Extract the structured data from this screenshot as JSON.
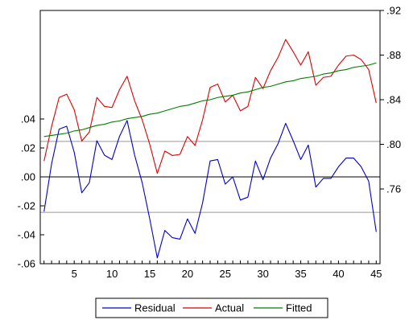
{
  "chart_data": {
    "type": "line",
    "title": "",
    "xlabel": "",
    "x": [
      1,
      2,
      3,
      4,
      5,
      6,
      7,
      8,
      9,
      10,
      11,
      12,
      13,
      14,
      15,
      16,
      17,
      18,
      19,
      20,
      21,
      22,
      23,
      24,
      25,
      26,
      27,
      28,
      29,
      30,
      31,
      32,
      33,
      34,
      35,
      36,
      37,
      38,
      39,
      40,
      41,
      42,
      43,
      44,
      45
    ],
    "x_ticks": [
      5,
      10,
      15,
      20,
      25,
      30,
      35,
      40,
      45
    ],
    "xlim": [
      0.5,
      45.5
    ],
    "left_axis": {
      "ylim": [
        -0.06,
        0.115
      ],
      "tick_values": [
        -0.06,
        -0.04,
        -0.02,
        0.0,
        0.02,
        0.04
      ],
      "tick_labels": [
        "-.06",
        "-.04",
        "-.02",
        ".00",
        ".02",
        ".04"
      ],
      "reference_lines": [
        {
          "value": 0.0,
          "style": "solid"
        },
        {
          "value": 0.0245,
          "style": "dotted"
        },
        {
          "value": -0.0245,
          "style": "dotted"
        }
      ]
    },
    "right_axis": {
      "ylim": [
        0.693,
        0.92
      ],
      "tick_values": [
        0.76,
        0.8,
        0.84,
        0.88,
        0.92
      ],
      "tick_labels": [
        ".76",
        ".80",
        ".84",
        ".88",
        ".92"
      ]
    },
    "series": [
      {
        "name": "Residual",
        "axis": "left",
        "color": "#0000cc",
        "values": [
          -0.024,
          0.009,
          0.033,
          0.035,
          0.017,
          -0.011,
          -0.004,
          0.025,
          0.015,
          0.012,
          0.028,
          0.039,
          0.015,
          -0.004,
          -0.029,
          -0.056,
          -0.037,
          -0.042,
          -0.043,
          -0.029,
          -0.039,
          -0.018,
          0.011,
          0.012,
          -0.005,
          0.0,
          -0.016,
          -0.014,
          0.011,
          -0.002,
          0.013,
          0.023,
          0.037,
          0.025,
          0.012,
          0.022,
          -0.007,
          -0.001,
          -0.001,
          0.007,
          0.013,
          0.013,
          0.007,
          -0.003,
          -0.038
        ]
      },
      {
        "name": "Actual",
        "axis": "right",
        "color": "#dd0000",
        "values": [
          0.785,
          0.816,
          0.842,
          0.845,
          0.831,
          0.803,
          0.811,
          0.842,
          0.834,
          0.833,
          0.849,
          0.861,
          0.839,
          0.822,
          0.8,
          0.774,
          0.794,
          0.79,
          0.791,
          0.807,
          0.799,
          0.822,
          0.851,
          0.854,
          0.838,
          0.844,
          0.83,
          0.834,
          0.86,
          0.85,
          0.866,
          0.878,
          0.894,
          0.883,
          0.871,
          0.883,
          0.853,
          0.86,
          0.861,
          0.871,
          0.879,
          0.88,
          0.876,
          0.867,
          0.837
        ]
      },
      {
        "name": "Fitted",
        "axis": "right",
        "color": "#007f00",
        "values": [
          0.807,
          0.808,
          0.809,
          0.81,
          0.812,
          0.813,
          0.815,
          0.817,
          0.818,
          0.82,
          0.821,
          0.823,
          0.824,
          0.825,
          0.827,
          0.828,
          0.83,
          0.832,
          0.834,
          0.835,
          0.837,
          0.839,
          0.84,
          0.842,
          0.843,
          0.844,
          0.846,
          0.847,
          0.849,
          0.851,
          0.852,
          0.854,
          0.856,
          0.857,
          0.859,
          0.86,
          0.861,
          0.863,
          0.864,
          0.866,
          0.867,
          0.869,
          0.87,
          0.871,
          0.873
        ]
      }
    ],
    "legend": {
      "position": "bottom-center",
      "entries": [
        "Residual",
        "Actual",
        "Fitted"
      ]
    },
    "grid": false,
    "colors": {
      "frame": "#000000",
      "zero_line": "#000000",
      "band_line": "#999999",
      "background": "#ffffff"
    }
  }
}
